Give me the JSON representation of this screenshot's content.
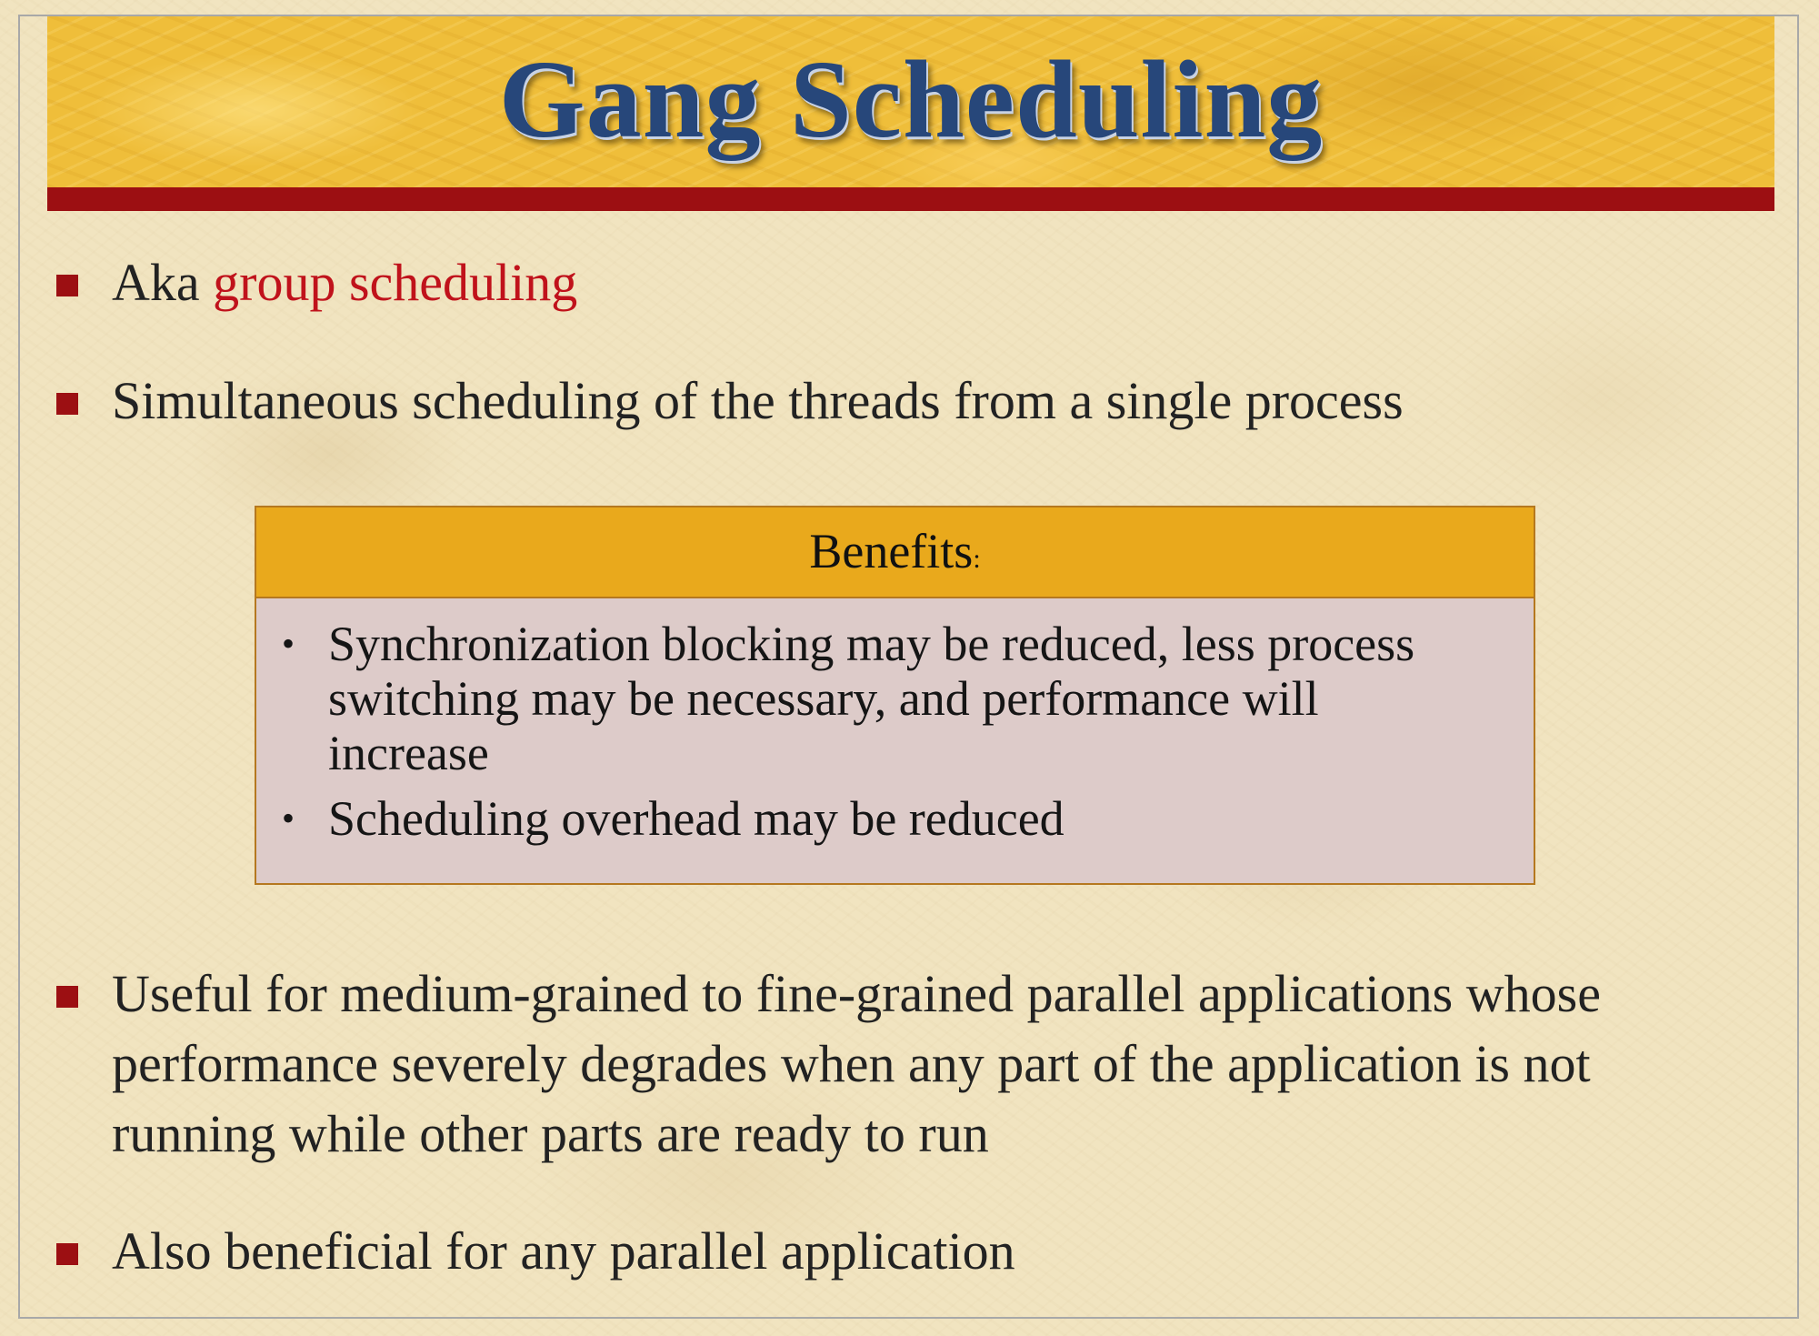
{
  "slide": {
    "title": "Gang Scheduling",
    "bullets_top": [
      {
        "prefix": "Aka ",
        "highlight": "group scheduling"
      },
      {
        "text": "Simultaneous scheduling of the threads from a single process"
      }
    ],
    "benefits_box": {
      "header": "Benefits",
      "header_suffix": ":",
      "items": [
        "Synchronization blocking may be reduced, less process switching may be necessary, and performance will increase",
        "Scheduling overhead may be reduced"
      ]
    },
    "bullets_bottom": [
      {
        "text": "Useful for medium-grained to fine-grained parallel applications whose performance severely degrades when any part of the application is not running while other parts are ready to run"
      },
      {
        "text": "Also beneficial for any parallel application"
      }
    ],
    "colors": {
      "title": "#27477a",
      "rule": "#9c0f12",
      "bullet_marker": "#9c0f12",
      "highlight": "#c0121b",
      "box_header": "#e9a91c",
      "box_body": "#ddcbc9"
    }
  }
}
